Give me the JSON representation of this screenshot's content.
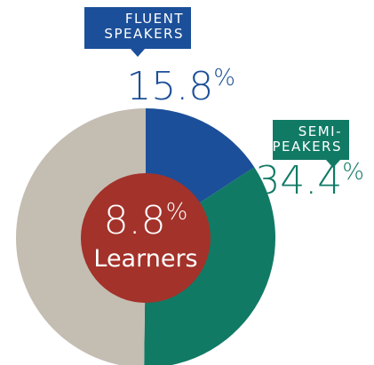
{
  "chart_data": {
    "type": "pie",
    "categories": [
      [
        "FLUENT",
        "SPEAKERS"
      ],
      [
        "SEMI-",
        "SPEAKERS"
      ],
      null
    ],
    "values": [
      15.8,
      34.4,
      49.8
    ],
    "value_labels": [
      "15.8%",
      "34.4%",
      null
    ],
    "colors": [
      "#1c4f99",
      "#117a65",
      "#c4bdb2"
    ],
    "center": {
      "value": 8.8,
      "value_label": "8.8%",
      "label": "Learners",
      "color": "#a3322a"
    }
  }
}
